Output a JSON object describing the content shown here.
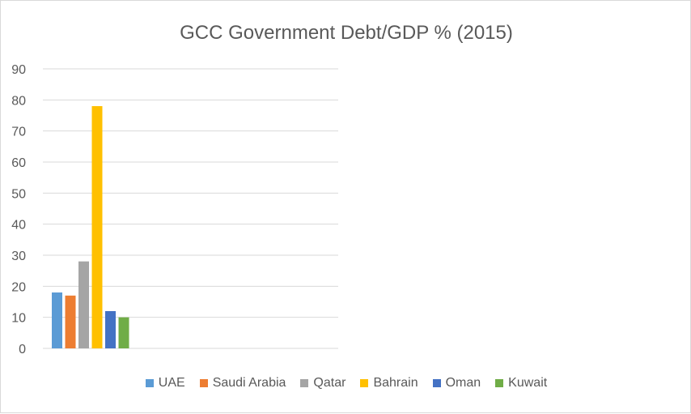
{
  "chart_data": {
    "type": "bar",
    "title": "GCC Government Debt/GDP % (2015)",
    "xlabel": "",
    "ylabel": "",
    "ylim": [
      0,
      90
    ],
    "yticks": [
      "0",
      "10",
      "20",
      "30",
      "40",
      "50",
      "60",
      "70",
      "80",
      "90"
    ],
    "grid": true,
    "legend_position": "bottom",
    "categories": [
      ""
    ],
    "series": [
      {
        "name": "UAE",
        "values": [
          18
        ],
        "color": "#5B9BD5"
      },
      {
        "name": "Saudi Arabia",
        "values": [
          17
        ],
        "color": "#ED7D31"
      },
      {
        "name": "Qatar",
        "values": [
          28
        ],
        "color": "#A5A5A5"
      },
      {
        "name": "Bahrain",
        "values": [
          78
        ],
        "color": "#FFC000"
      },
      {
        "name": "Oman",
        "values": [
          12
        ],
        "color": "#4472C4"
      },
      {
        "name": "Kuwait",
        "values": [
          10
        ],
        "color": "#70AD47"
      }
    ]
  }
}
